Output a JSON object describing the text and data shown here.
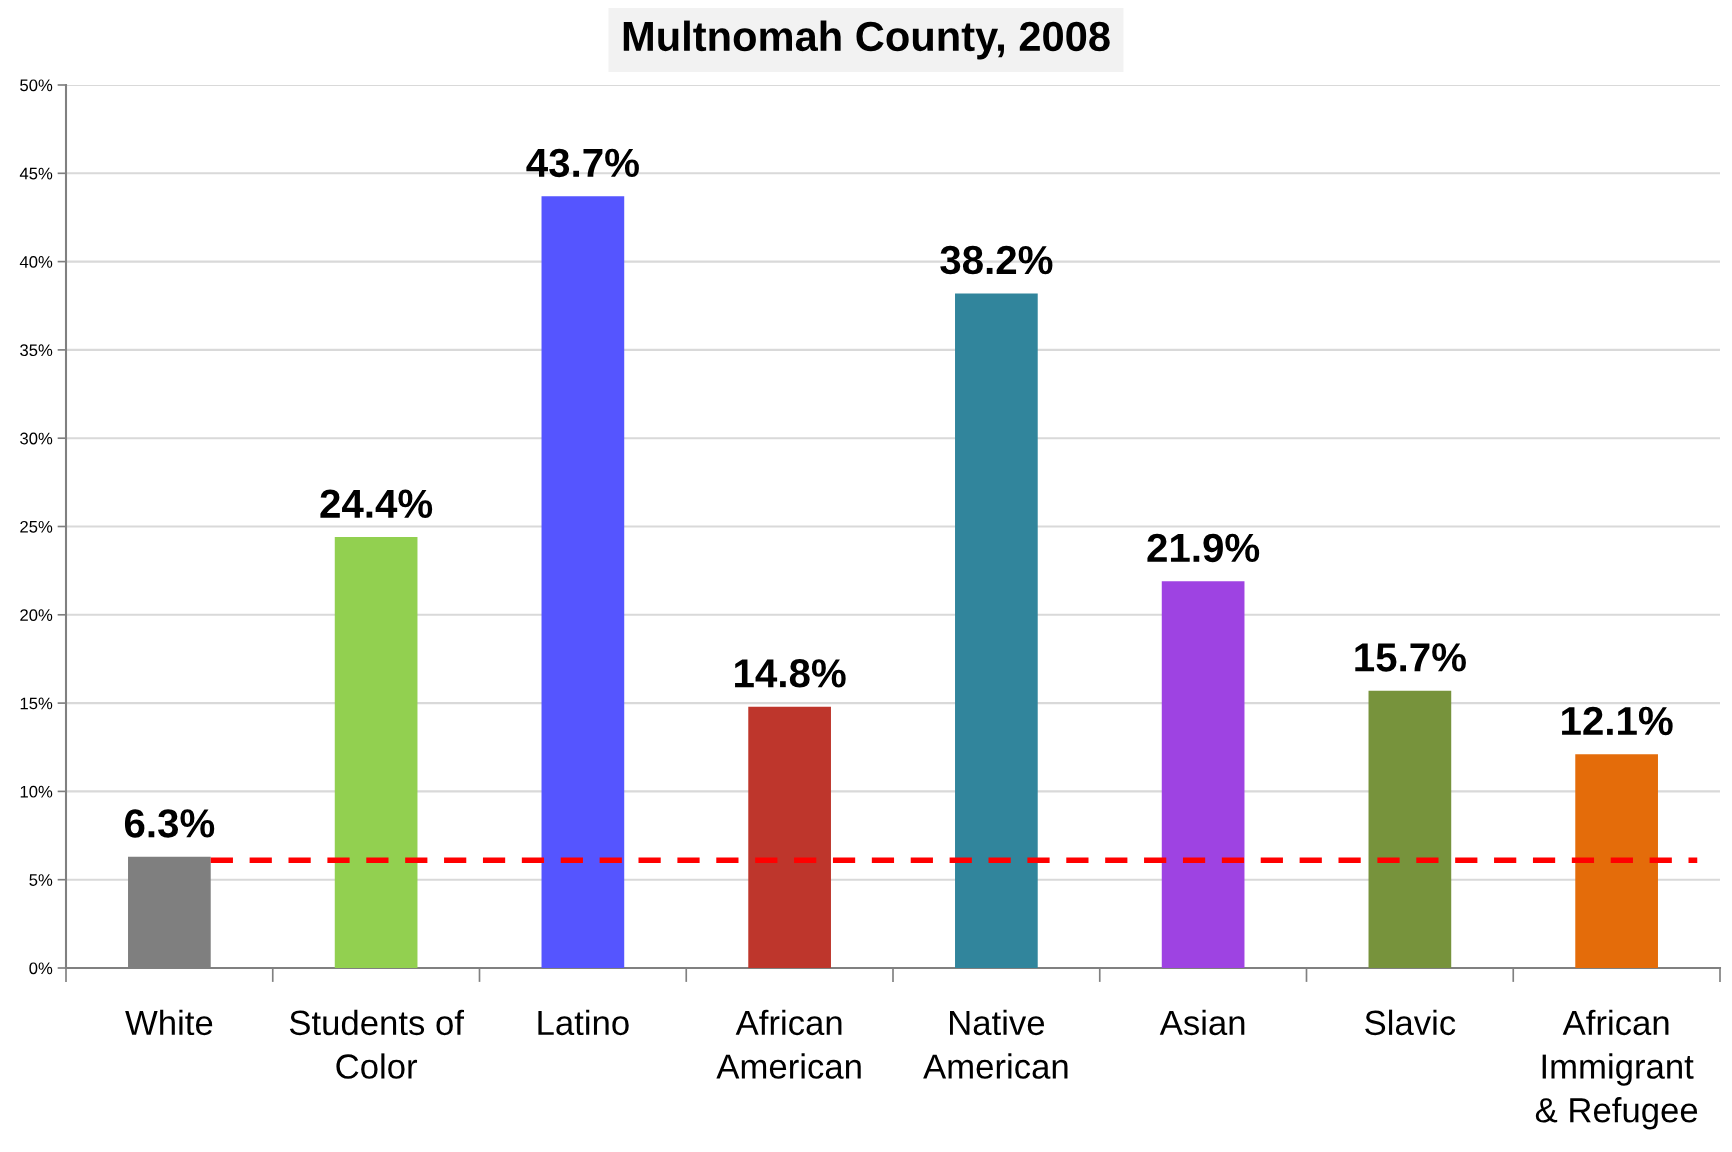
{
  "chart_data": {
    "type": "bar",
    "title": "Multnomah County, 2008",
    "categories": [
      "White",
      "Students of\nColor",
      "Latino",
      "African\nAmerican",
      "Native\nAmerican",
      "Asian",
      "Slavic",
      "African\nImmigrant\n& Refugee"
    ],
    "values": [
      6.3,
      24.4,
      43.7,
      14.8,
      38.2,
      21.9,
      15.7,
      12.1
    ],
    "colors": [
      "#7f7f7f",
      "#92d050",
      "#5555ff",
      "#be362c",
      "#31859c",
      "#9e43e2",
      "#77933c",
      "#e46c0a"
    ],
    "value_labels": [
      "6.3%",
      "24.4%",
      "43.7%",
      "14.8%",
      "38.2%",
      "21.9%",
      "15.7%",
      "12.1%"
    ],
    "ylim": [
      0,
      50
    ],
    "yticks": [
      {
        "value": 0,
        "label": "0%"
      },
      {
        "value": 5,
        "label": "5%"
      },
      {
        "value": 10,
        "label": "10%"
      },
      {
        "value": 15,
        "label": "15%"
      },
      {
        "value": 20,
        "label": "20%"
      },
      {
        "value": 25,
        "label": "25%"
      },
      {
        "value": 30,
        "label": "30%"
      },
      {
        "value": 35,
        "label": "35%"
      },
      {
        "value": 40,
        "label": "40%"
      },
      {
        "value": 45,
        "label": "45%"
      },
      {
        "value": 50,
        "label": "50%"
      }
    ],
    "grid": "y",
    "ref_lines": [
      {
        "axis": "y",
        "value": 6.1,
        "color": "#ff0000",
        "line_style": "dashed"
      }
    ]
  }
}
